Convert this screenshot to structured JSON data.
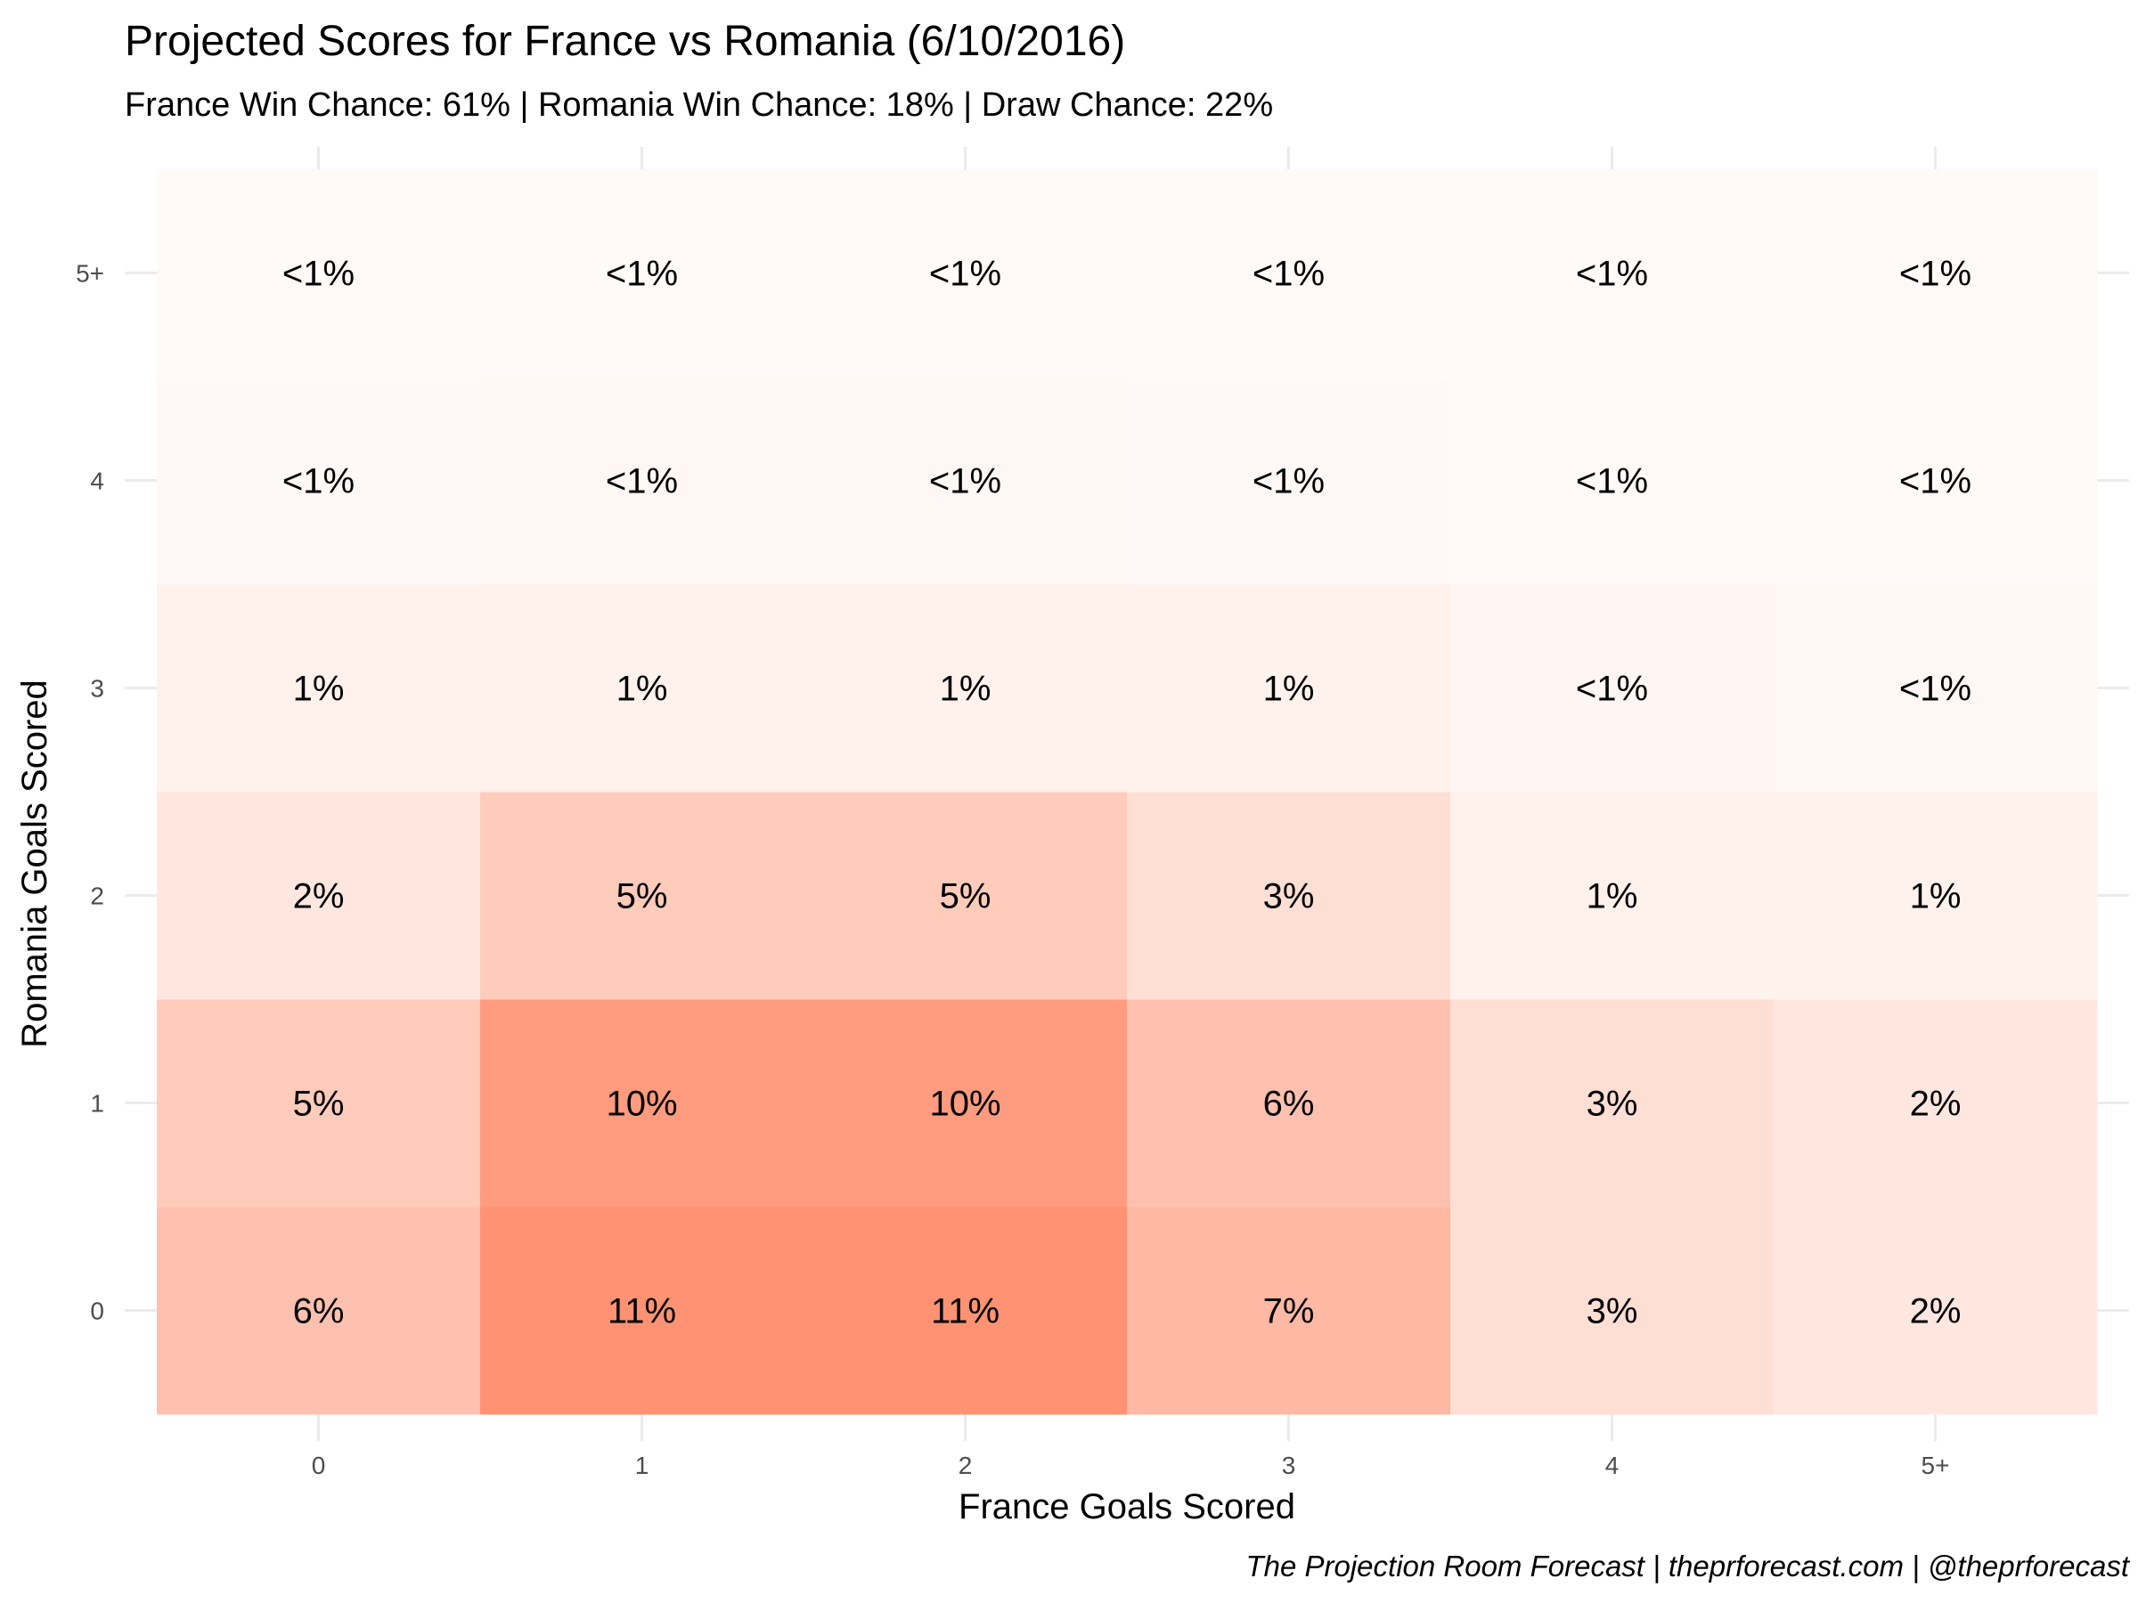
{
  "title": "Projected Scores for France vs Romania (6/10/2016)",
  "subtitle": "France Win Chance: 61% | Romania Win Chance: 18% | Draw Chance: 22%",
  "caption": "The Projection Room Forecast | theprforecast.com | @theprforecast",
  "colors": {
    "low": "#fffaf8",
    "high": "#ff9272",
    "grid": "#ebebeb",
    "tick_text": "#4d4d4d"
  },
  "chart_data": {
    "type": "heatmap",
    "title": "Projected Scores for France vs Romania (6/10/2016)",
    "subtitle": "France Win Chance: 61% | Romania Win Chance: 18% | Draw Chance: 22%",
    "xlabel": "France Goals Scored",
    "ylabel": "Romania  Goals Scored",
    "x_categories": [
      "0",
      "1",
      "2",
      "3",
      "4",
      "5+"
    ],
    "y_categories": [
      "0",
      "1",
      "2",
      "3",
      "4",
      "5+"
    ],
    "cells": [
      {
        "x": "0",
        "y": "0",
        "value": 6,
        "label": "6%"
      },
      {
        "x": "1",
        "y": "0",
        "value": 11,
        "label": "11%"
      },
      {
        "x": "2",
        "y": "0",
        "value": 11,
        "label": "11%"
      },
      {
        "x": "3",
        "y": "0",
        "value": 7,
        "label": "7%"
      },
      {
        "x": "4",
        "y": "0",
        "value": 3,
        "label": "3%"
      },
      {
        "x": "5+",
        "y": "0",
        "value": 2,
        "label": "2%"
      },
      {
        "x": "0",
        "y": "1",
        "value": 5,
        "label": "5%"
      },
      {
        "x": "1",
        "y": "1",
        "value": 10,
        "label": "10%"
      },
      {
        "x": "2",
        "y": "1",
        "value": 10,
        "label": "10%"
      },
      {
        "x": "3",
        "y": "1",
        "value": 6,
        "label": "6%"
      },
      {
        "x": "4",
        "y": "1",
        "value": 3,
        "label": "3%"
      },
      {
        "x": "5+",
        "y": "1",
        "value": 2,
        "label": "2%"
      },
      {
        "x": "0",
        "y": "2",
        "value": 2,
        "label": "2%"
      },
      {
        "x": "1",
        "y": "2",
        "value": 5,
        "label": "5%"
      },
      {
        "x": "2",
        "y": "2",
        "value": 5,
        "label": "5%"
      },
      {
        "x": "3",
        "y": "2",
        "value": 3,
        "label": "3%"
      },
      {
        "x": "4",
        "y": "2",
        "value": 1,
        "label": "1%"
      },
      {
        "x": "5+",
        "y": "2",
        "value": 1,
        "label": "1%"
      },
      {
        "x": "0",
        "y": "3",
        "value": 1,
        "label": "1%"
      },
      {
        "x": "1",
        "y": "3",
        "value": 1,
        "label": "1%"
      },
      {
        "x": "2",
        "y": "3",
        "value": 1,
        "label": "1%"
      },
      {
        "x": "3",
        "y": "3",
        "value": 1,
        "label": "1%"
      },
      {
        "x": "4",
        "y": "3",
        "value": 0.5,
        "label": "<1%"
      },
      {
        "x": "5+",
        "y": "3",
        "value": 0.3,
        "label": "<1%"
      },
      {
        "x": "0",
        "y": "4",
        "value": 0.2,
        "label": "<1%"
      },
      {
        "x": "1",
        "y": "4",
        "value": 0.3,
        "label": "<1%"
      },
      {
        "x": "2",
        "y": "4",
        "value": 0.3,
        "label": "<1%"
      },
      {
        "x": "3",
        "y": "4",
        "value": 0.2,
        "label": "<1%"
      },
      {
        "x": "4",
        "y": "4",
        "value": 0.1,
        "label": "<1%"
      },
      {
        "x": "5+",
        "y": "4",
        "value": 0.05,
        "label": "<1%"
      },
      {
        "x": "0",
        "y": "5+",
        "value": 0.02,
        "label": "<1%"
      },
      {
        "x": "1",
        "y": "5+",
        "value": 0.05,
        "label": "<1%"
      },
      {
        "x": "2",
        "y": "5+",
        "value": 0.05,
        "label": "<1%"
      },
      {
        "x": "3",
        "y": "5+",
        "value": 0.03,
        "label": "<1%"
      },
      {
        "x": "4",
        "y": "5+",
        "value": 0.02,
        "label": "<1%"
      },
      {
        "x": "5+",
        "y": "5+",
        "value": 0.01,
        "label": "<1%"
      }
    ],
    "value_unit": "%",
    "grid": true,
    "legend": "none"
  }
}
